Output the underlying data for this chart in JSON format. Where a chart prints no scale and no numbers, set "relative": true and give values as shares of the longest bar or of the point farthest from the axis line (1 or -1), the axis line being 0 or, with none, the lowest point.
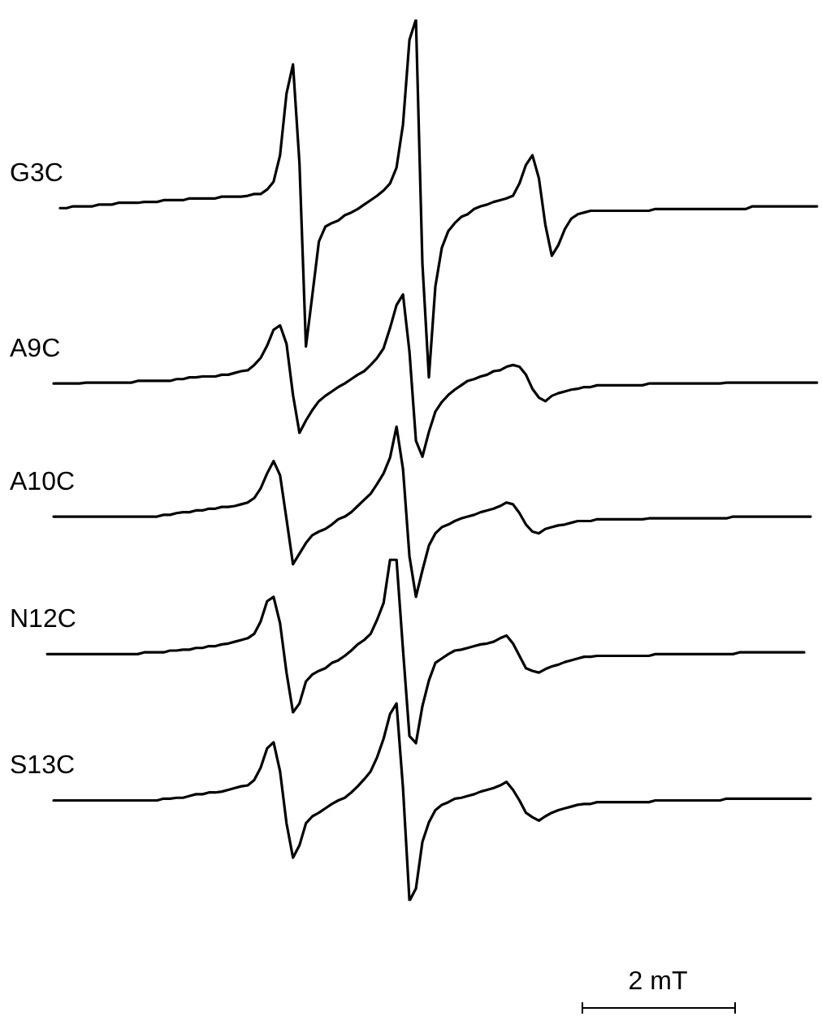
{
  "chart_data": {
    "type": "line",
    "relative": true,
    "legend": false,
    "marker": "none",
    "line_style": "solid",
    "annotations": [
      "2 mT"
    ],
    "categories": [
      null,
      null,
      null,
      null,
      null,
      null,
      null,
      null,
      null,
      null,
      null,
      null,
      null,
      null,
      null,
      null,
      null,
      null,
      null,
      null,
      null,
      null,
      null,
      null,
      null,
      null,
      null,
      null,
      null,
      null,
      null,
      null,
      null,
      null,
      null,
      null,
      null,
      null,
      null,
      null,
      null,
      null,
      null,
      null,
      null,
      null,
      null,
      null,
      null,
      null,
      null,
      null,
      null,
      null,
      null,
      null,
      null,
      null,
      null,
      null,
      null,
      null,
      null,
      null,
      null,
      null,
      null,
      null,
      null,
      null,
      null,
      null,
      null,
      null,
      null,
      null,
      null,
      null,
      null,
      null,
      null,
      null,
      null,
      null,
      null,
      null,
      null,
      null,
      null,
      null,
      null,
      null,
      null,
      null,
      null,
      null,
      null,
      null,
      null,
      null,
      null,
      null,
      null,
      null,
      null,
      null,
      null,
      null,
      null,
      null,
      null,
      null,
      null,
      null,
      null,
      null,
      null,
      null,
      null,
      null
    ],
    "series": [
      {
        "name": "G3C",
        "color": "#000000",
        "values": [
          null,
          null,
          0.786,
          0.786,
          0.788,
          0.788,
          0.788,
          0.788,
          0.79,
          0.79,
          0.79,
          0.792,
          0.792,
          0.792,
          0.792,
          0.793,
          0.793,
          0.793,
          0.795,
          0.795,
          0.795,
          0.795,
          0.797,
          0.797,
          0.797,
          0.797,
          0.797,
          0.799,
          0.799,
          0.799,
          0.799,
          0.8,
          0.802,
          0.802,
          0.807,
          0.816,
          0.846,
          0.916,
          0.949,
          0.837,
          0.629,
          0.688,
          0.748,
          0.765,
          0.769,
          0.772,
          0.778,
          0.781,
          0.785,
          0.79,
          0.795,
          0.8,
          0.806,
          0.814,
          0.832,
          0.881,
          0.977,
          1,
          0.723,
          0.594,
          0.697,
          0.741,
          0.76,
          0.769,
          0.776,
          0.779,
          0.785,
          0.788,
          0.79,
          0.793,
          0.795,
          0.797,
          0.8,
          0.814,
          0.835,
          0.846,
          0.82,
          0.767,
          0.732,
          0.744,
          0.762,
          0.774,
          0.779,
          0.781,
          0.783,
          0.783,
          0.783,
          0.783,
          0.783,
          0.783,
          0.783,
          0.783,
          0.783,
          0.783,
          0.785,
          0.785,
          0.785,
          0.785,
          0.785,
          0.785,
          0.785,
          0.785,
          0.785,
          0.785,
          0.785,
          0.785,
          0.785,
          0.785,
          0.785,
          0.788,
          0.788,
          0.788,
          0.788,
          0.788,
          0.788,
          0.788,
          0.788,
          0.788,
          0.788,
          0.788
        ]
      },
      {
        "name": "A9C",
        "color": "#000000",
        "values": [
          null,
          0.587,
          0.587,
          0.587,
          0.587,
          0.587,
          0.588,
          0.588,
          0.588,
          0.588,
          0.588,
          0.588,
          0.588,
          0.588,
          0.59,
          0.59,
          0.59,
          0.59,
          0.59,
          0.59,
          0.592,
          0.592,
          0.594,
          0.594,
          0.595,
          0.595,
          0.595,
          0.597,
          0.597,
          0.599,
          0.601,
          0.602,
          0.608,
          0.616,
          0.63,
          0.648,
          0.653,
          0.632,
          0.574,
          0.531,
          0.545,
          0.557,
          0.567,
          0.573,
          0.578,
          0.583,
          0.587,
          0.592,
          0.597,
          0.601,
          0.608,
          0.616,
          0.627,
          0.65,
          0.676,
          0.688,
          0.623,
          0.522,
          0.504,
          0.532,
          0.555,
          0.566,
          0.574,
          0.58,
          0.585,
          0.59,
          0.592,
          0.595,
          0.597,
          0.601,
          0.602,
          0.606,
          0.608,
          0.606,
          0.597,
          0.581,
          0.571,
          0.567,
          0.573,
          0.576,
          0.578,
          0.58,
          0.581,
          0.583,
          0.583,
          0.585,
          0.585,
          0.585,
          0.585,
          0.585,
          0.585,
          0.585,
          0.585,
          0.587,
          0.587,
          0.587,
          0.587,
          0.587,
          0.587,
          0.587,
          0.587,
          0.587,
          0.587,
          0.587,
          0.587,
          0.588,
          0.588,
          0.588,
          0.588,
          0.588,
          0.588,
          0.588,
          0.588,
          0.588,
          0.588,
          0.588,
          0.588,
          0.588,
          0.588,
          0.588
        ]
      },
      {
        "name": "A10C",
        "color": "#000000",
        "values": [
          null,
          0.436,
          0.436,
          0.436,
          0.436,
          0.436,
          0.436,
          0.436,
          0.436,
          0.436,
          0.436,
          0.436,
          0.436,
          0.436,
          0.436,
          0.436,
          0.436,
          0.436,
          0.438,
          0.438,
          0.44,
          0.441,
          0.441,
          0.443,
          0.443,
          0.445,
          0.445,
          0.447,
          0.447,
          0.448,
          0.45,
          0.452,
          0.457,
          0.468,
          0.485,
          0.499,
          0.483,
          0.433,
          0.382,
          0.394,
          0.406,
          0.415,
          0.419,
          0.422,
          0.427,
          0.433,
          0.436,
          0.441,
          0.448,
          0.455,
          0.462,
          0.473,
          0.485,
          0.503,
          0.538,
          0.49,
          0.391,
          0.345,
          0.375,
          0.403,
          0.417,
          0.424,
          0.427,
          0.431,
          0.434,
          0.436,
          0.438,
          0.441,
          0.443,
          0.445,
          0.448,
          0.452,
          0.45,
          0.44,
          0.427,
          0.419,
          0.417,
          0.422,
          0.424,
          0.426,
          0.427,
          0.429,
          0.431,
          0.431,
          0.431,
          0.433,
          0.433,
          0.433,
          0.433,
          0.433,
          0.433,
          0.433,
          0.433,
          0.434,
          0.434,
          0.434,
          0.434,
          0.434,
          0.434,
          0.434,
          0.434,
          0.434,
          0.434,
          0.434,
          0.434,
          0.434,
          0.436,
          0.436,
          0.436,
          0.436,
          0.436,
          0.436,
          0.436,
          0.436,
          0.436,
          0.436,
          0.436,
          0.436,
          0.436,
          null
        ]
      },
      {
        "name": "N12C",
        "color": "#000000",
        "values": [
          0.28,
          0.28,
          0.28,
          0.28,
          0.28,
          0.28,
          0.28,
          0.28,
          0.28,
          0.28,
          0.28,
          0.28,
          0.28,
          0.28,
          0.28,
          0.282,
          0.282,
          0.282,
          0.282,
          0.284,
          0.284,
          0.285,
          0.285,
          0.287,
          0.287,
          0.289,
          0.289,
          0.291,
          0.292,
          0.294,
          0.296,
          0.298,
          0.303,
          0.317,
          0.34,
          0.345,
          0.315,
          0.259,
          0.214,
          0.224,
          0.249,
          0.257,
          0.261,
          0.264,
          0.27,
          0.273,
          0.278,
          0.284,
          0.291,
          0.296,
          0.303,
          0.319,
          0.338,
          0.387,
          0.387,
          0.285,
          0.187,
          0.179,
          0.221,
          0.25,
          0.27,
          0.275,
          0.28,
          0.284,
          0.285,
          0.287,
          0.289,
          0.291,
          0.292,
          0.294,
          0.298,
          0.301,
          0.292,
          0.278,
          0.264,
          0.261,
          0.259,
          0.263,
          0.266,
          0.268,
          0.271,
          0.273,
          0.275,
          0.277,
          0.277,
          0.278,
          0.278,
          0.278,
          0.278,
          0.278,
          0.278,
          0.278,
          0.278,
          0.278,
          0.28,
          0.28,
          0.28,
          0.28,
          0.28,
          0.28,
          0.28,
          0.28,
          0.28,
          0.28,
          0.28,
          0.28,
          0.28,
          0.282,
          0.282,
          0.282,
          0.282,
          0.282,
          0.282,
          0.282,
          0.282,
          0.282,
          0.282,
          0.282,
          null,
          null
        ]
      },
      {
        "name": "S13C",
        "color": "#000000",
        "values": [
          null,
          0.114,
          0.114,
          0.114,
          0.114,
          0.114,
          0.114,
          0.114,
          0.114,
          0.114,
          0.114,
          0.114,
          0.114,
          0.114,
          0.114,
          0.114,
          0.114,
          0.114,
          0.116,
          0.116,
          0.117,
          0.117,
          0.119,
          0.121,
          0.121,
          0.123,
          0.123,
          0.124,
          0.126,
          0.128,
          0.13,
          0.131,
          0.137,
          0.151,
          0.173,
          0.18,
          0.147,
          0.088,
          0.049,
          0.063,
          0.088,
          0.096,
          0.1,
          0.105,
          0.11,
          0.114,
          0.117,
          0.123,
          0.13,
          0.138,
          0.147,
          0.163,
          0.184,
          0.212,
          0.224,
          0.128,
          0,
          0.014,
          0.067,
          0.089,
          0.103,
          0.109,
          0.112,
          0.116,
          0.117,
          0.119,
          0.121,
          0.124,
          0.126,
          0.128,
          0.131,
          0.135,
          0.126,
          0.114,
          0.1,
          0.095,
          0.091,
          0.096,
          0.1,
          0.103,
          0.105,
          0.107,
          0.109,
          0.11,
          0.11,
          0.112,
          0.112,
          0.112,
          0.112,
          0.112,
          0.112,
          0.112,
          0.112,
          0.112,
          0.114,
          0.114,
          0.114,
          0.114,
          0.114,
          0.114,
          0.114,
          0.114,
          0.114,
          0.114,
          0.114,
          0.116,
          0.116,
          0.116,
          0.116,
          0.116,
          0.116,
          0.116,
          0.116,
          0.116,
          0.116,
          0.116,
          0.116,
          0.116,
          0.116,
          null
        ]
      }
    ]
  }
}
